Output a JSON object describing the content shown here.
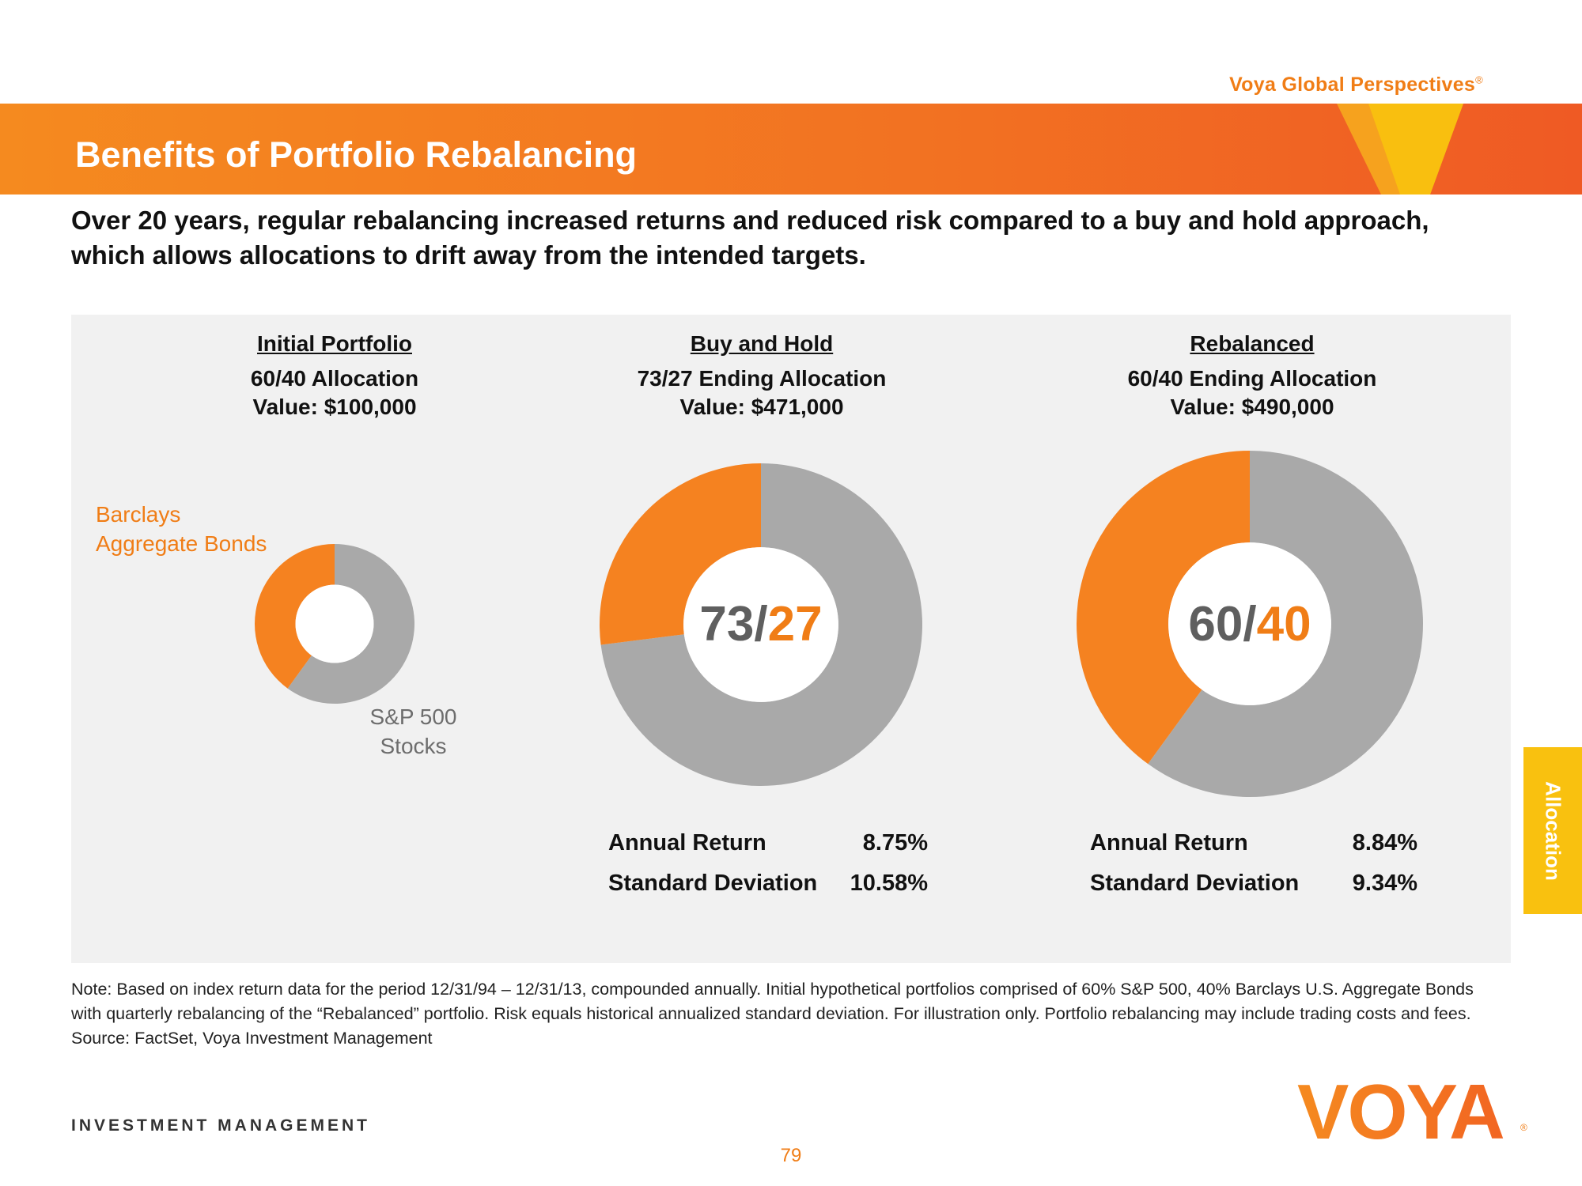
{
  "brand": {
    "series_name": "Voya Global Perspectives",
    "registered_mark": "®"
  },
  "header": {
    "title": "Benefits of Portfolio Rebalancing",
    "subtitle": "Over 20 years, regular rebalancing increased returns and reduced risk compared to a buy and hold approach, which allows allocations to drift away from the intended targets."
  },
  "legend": {
    "bonds_label": [
      "Barclays",
      "Aggregate Bonds"
    ],
    "stocks_label": [
      "S&P 500",
      "Stocks"
    ]
  },
  "colors": {
    "bonds": "#f58220",
    "stocks": "#a9a9a9",
    "accent": "#f07d16",
    "tab": "#f9c10f",
    "center_gray": "#5f5f5f"
  },
  "columns": [
    {
      "heading": "Initial Portfolio",
      "allocation_line": "60/40 Allocation",
      "value_line": "Value: $100,000"
    },
    {
      "heading": "Buy and Hold",
      "allocation_line": "73/27 Ending Allocation",
      "value_line": "Value: $471,000",
      "center_label": {
        "stocks": "73",
        "sep": "/",
        "bonds": "27"
      },
      "stats": [
        {
          "label": "Annual Return",
          "value": "8.75%"
        },
        {
          "label": "Standard Deviation",
          "value": "10.58%"
        }
      ]
    },
    {
      "heading": "Rebalanced",
      "allocation_line": "60/40 Ending Allocation",
      "value_line": "Value: $490,000",
      "center_label": {
        "stocks": "60",
        "sep": "/",
        "bonds": "40"
      },
      "stats": [
        {
          "label": "Annual Return",
          "value": "8.84%"
        },
        {
          "label": "Standard Deviation",
          "value": "9.34%"
        }
      ]
    }
  ],
  "chart_data": [
    {
      "type": "pie",
      "title": "Initial Portfolio",
      "categories": [
        "S&P 500 Stocks",
        "Barclays Aggregate Bonds"
      ],
      "values": [
        60,
        40
      ],
      "portfolio_value": 100000
    },
    {
      "type": "pie",
      "title": "Buy and Hold",
      "categories": [
        "S&P 500 Stocks",
        "Barclays Aggregate Bonds"
      ],
      "values": [
        73,
        27
      ],
      "portfolio_value": 471000
    },
    {
      "type": "pie",
      "title": "Rebalanced",
      "categories": [
        "S&P 500 Stocks",
        "Barclays Aggregate Bonds"
      ],
      "values": [
        60,
        40
      ],
      "portfolio_value": 490000
    }
  ],
  "side_tab": "Allocation",
  "note": "Note: Based on index return data for the period 12/31/94 – 12/31/13, compounded annually. Initial hypothetical portfolios comprised of 60% S&P 500, 40% Barclays U.S. Aggregate Bonds with quarterly rebalancing of the “Rebalanced” portfolio. Risk equals historical annualized standard deviation. For illustration only. Portfolio rebalancing may include trading costs and fees. Source: FactSet, Voya Investment Management",
  "footer": {
    "division": "INVESTMENT MANAGEMENT",
    "logo_text": "VOYA",
    "page_number": "79"
  }
}
